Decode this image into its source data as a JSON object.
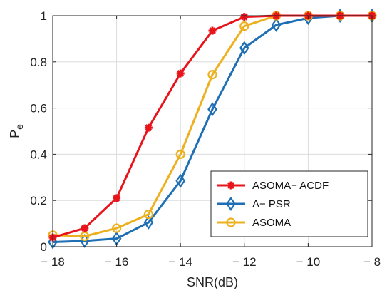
{
  "chart_data": {
    "type": "line",
    "xlabel": "SNR(dB)",
    "ylabel": "P",
    "ylabel_sub": "e",
    "xlim": [
      -18,
      -8
    ],
    "ylim": [
      0,
      1
    ],
    "xticks": [
      -18,
      -16,
      -14,
      -12,
      -10,
      -8
    ],
    "xtick_labels": [
      "− 18",
      "− 16",
      "− 14",
      "− 12",
      "− 10",
      "− 8"
    ],
    "yticks": [
      0,
      0.2,
      0.4,
      0.6,
      0.8,
      1
    ],
    "ytick_labels": [
      "0",
      "0.2",
      "0.4",
      "0.6",
      "0.8",
      "1"
    ],
    "grid": true,
    "legend_position": "bottom-right",
    "x": [
      -18,
      -17,
      -16,
      -15,
      -14,
      -13,
      -12,
      -11,
      -10,
      -9,
      -8
    ],
    "series": [
      {
        "name": "ASOMA− ACDF",
        "color": "#e8141b",
        "marker": "asterisk",
        "values": [
          0.04,
          0.08,
          0.21,
          0.515,
          0.75,
          0.935,
          0.995,
          1.0,
          1.0,
          1.0,
          1.0
        ]
      },
      {
        "name": "A− PSR",
        "color": "#1f6fb5",
        "marker": "diamond",
        "values": [
          0.02,
          0.025,
          0.035,
          0.105,
          0.285,
          0.595,
          0.86,
          0.96,
          0.99,
          1.0,
          1.0
        ]
      },
      {
        "name": "ASOMA",
        "color": "#edb120",
        "marker": "circle",
        "values": [
          0.05,
          0.045,
          0.08,
          0.14,
          0.4,
          0.745,
          0.955,
          1.0,
          1.0,
          1.0,
          1.0
        ]
      }
    ]
  }
}
